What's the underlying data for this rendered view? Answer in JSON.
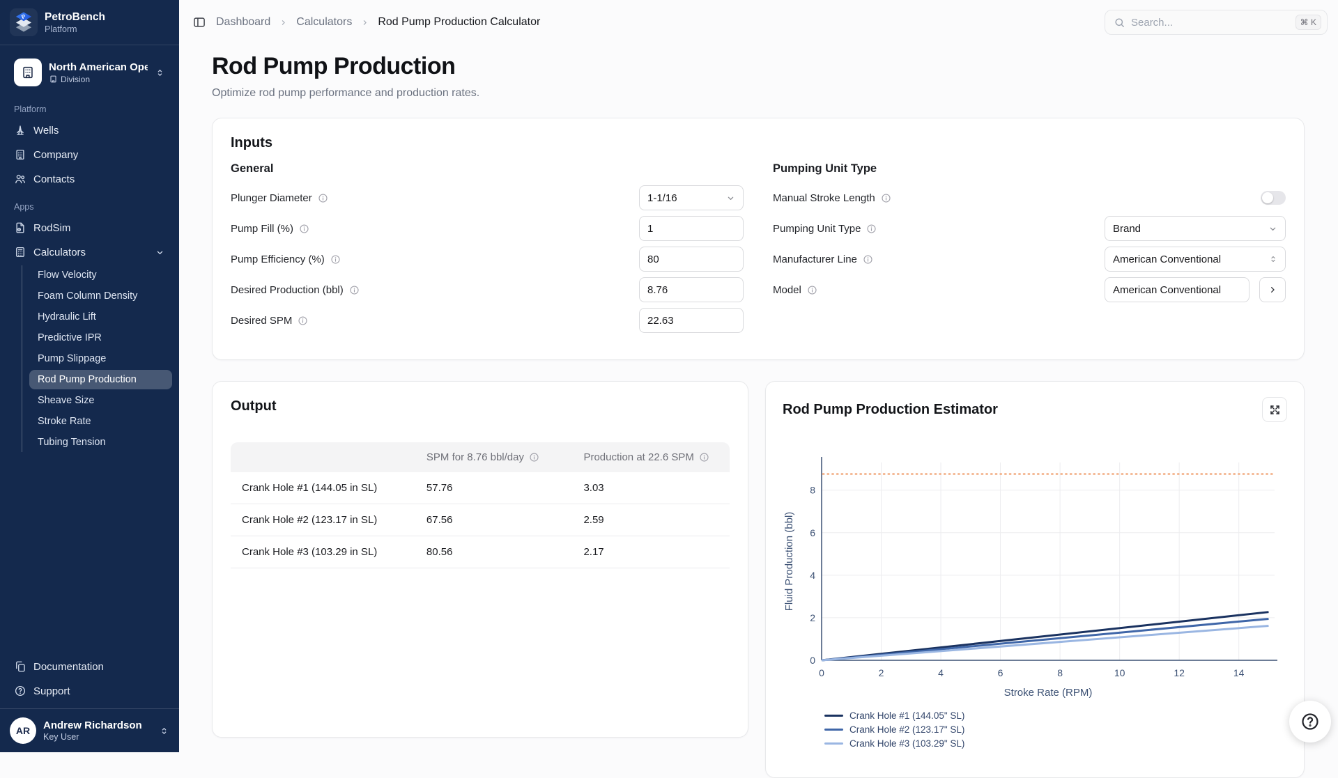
{
  "colors": {
    "sidebar_bg": "#14294d",
    "brand_accent": "#2f6bdf",
    "target_line": "#f2ab80",
    "series": [
      "#1a3260",
      "#3f66a8",
      "#9ab6e2"
    ]
  },
  "sidebar": {
    "brand": {
      "name": "PetroBench",
      "subtitle": "Platform"
    },
    "org": {
      "name": "North American Opera",
      "type": "Division"
    },
    "sections": [
      {
        "label": "Platform",
        "items": [
          {
            "label": "Wells",
            "icon": "derrick-icon"
          },
          {
            "label": "Company",
            "icon": "building-icon"
          },
          {
            "label": "Contacts",
            "icon": "users-icon"
          }
        ]
      },
      {
        "label": "Apps",
        "items": [
          {
            "label": "RodSim",
            "icon": "file-gear-icon"
          },
          {
            "label": "Calculators",
            "icon": "calculator-icon",
            "expanded": true,
            "children": [
              "Flow Velocity",
              "Foam Column Density",
              "Hydraulic Lift",
              "Predictive IPR",
              "Pump Slippage",
              "Rod Pump Production",
              "Sheave Size",
              "Stroke Rate",
              "Tubing Tension"
            ],
            "active_child": "Rod Pump Production"
          }
        ]
      }
    ],
    "footer_items": [
      {
        "label": "Documentation",
        "icon": "copy-icon"
      },
      {
        "label": "Support",
        "icon": "help-icon"
      }
    ],
    "user": {
      "initials": "AR",
      "name": "Andrew Richardson",
      "role": "Key User"
    }
  },
  "topbar": {
    "breadcrumb": [
      "Dashboard",
      "Calculators",
      "Rod Pump Production Calculator"
    ],
    "search": {
      "placeholder": "Search...",
      "shortcut": "⌘ K"
    }
  },
  "page": {
    "title": "Rod Pump Production",
    "subtitle": "Optimize rod pump performance and production rates."
  },
  "inputs": {
    "heading": "Inputs",
    "general": {
      "heading": "General",
      "fields": [
        {
          "label": "Plunger Diameter",
          "info": true,
          "control": "select",
          "value": "1-1/16"
        },
        {
          "label": "Pump Fill (%)",
          "info": true,
          "control": "input",
          "value": "1"
        },
        {
          "label": "Pump Efficiency (%)",
          "info": true,
          "control": "input",
          "value": "80"
        },
        {
          "label": "Desired Production (bbl)",
          "info": true,
          "control": "input",
          "value": "8.76"
        },
        {
          "label": "Desired SPM",
          "info": true,
          "control": "input",
          "value": "22.63"
        }
      ]
    },
    "pumping_unit": {
      "heading": "Pumping Unit Type",
      "info": true,
      "fields": [
        {
          "label": "Manual Stroke Length",
          "info": true,
          "control": "toggle",
          "value": "off"
        },
        {
          "label": "Pumping Unit Type",
          "info": true,
          "control": "select",
          "value": "Brand"
        },
        {
          "label": "Manufacturer Line",
          "info": true,
          "control": "select-updown",
          "value": "American Conventional"
        },
        {
          "label": "Model",
          "info": true,
          "control": "input-next",
          "value": "American Conventional"
        }
      ]
    }
  },
  "output": {
    "heading": "Output",
    "table": {
      "columns": [
        "",
        "SPM for 8.76 bbl/day",
        "Production at 22.6 SPM"
      ],
      "column_info": [
        false,
        true,
        true
      ],
      "rows": [
        [
          "Crank Hole #1 (144.05 in SL)",
          "57.76",
          "3.03"
        ],
        [
          "Crank Hole #2 (123.17 in SL)",
          "67.56",
          "2.59"
        ],
        [
          "Crank Hole #3 (103.29 in SL)",
          "80.56",
          "2.17"
        ]
      ]
    }
  },
  "chart_card": {
    "title": "Rod Pump Production Estimator"
  },
  "chart_data": {
    "type": "line",
    "title": "Rod Pump Production Estimator",
    "xlabel": "Stroke Rate (RPM)",
    "ylabel": "Fluid Production (bbl)",
    "xlim": [
      0,
      15.2
    ],
    "ylim": [
      0,
      9.3
    ],
    "xticks": [
      0,
      2,
      4,
      6,
      8,
      10,
      12,
      14
    ],
    "yticks": [
      0,
      2,
      4,
      6,
      8
    ],
    "grid": true,
    "legend_position": "bottom-left",
    "target_line": {
      "y": 8.76,
      "color": "#f2ab80",
      "style": "dotted"
    },
    "series": [
      {
        "name": "Crank Hole #1 (144.05\" SL)",
        "color": "#1a3260",
        "x": [
          0,
          15
        ],
        "y": [
          0,
          2.27
        ]
      },
      {
        "name": "Crank Hole #2 (123.17\" SL)",
        "color": "#3f66a8",
        "x": [
          0,
          15
        ],
        "y": [
          0,
          1.95
        ]
      },
      {
        "name": "Crank Hole #3 (103.29\" SL)",
        "color": "#9ab6e2",
        "x": [
          0,
          15
        ],
        "y": [
          0,
          1.62
        ]
      }
    ]
  }
}
